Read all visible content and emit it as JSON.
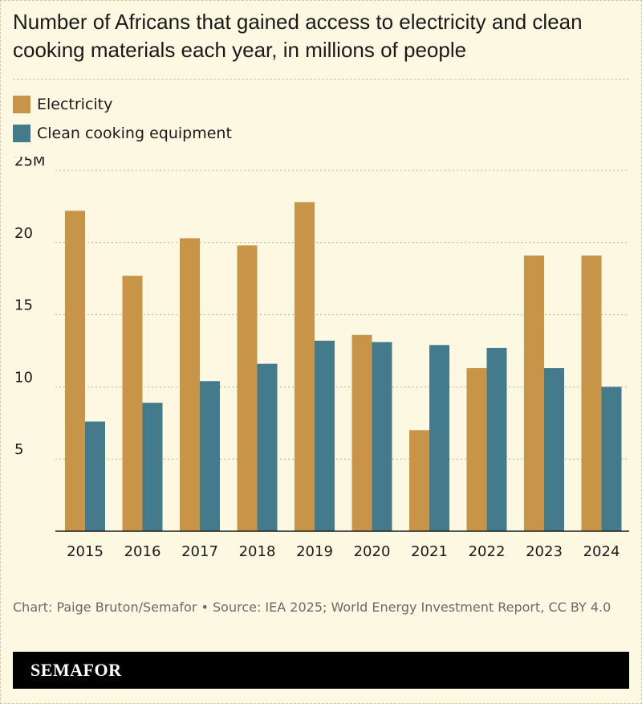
{
  "title": "Number of Africans that gained access to electricity and clean cooking materials each year, in millions of people",
  "legend": {
    "electricity": "Electricity",
    "cooking": "Clean cooking equipment"
  },
  "footer": {
    "credit": "Chart: Paige Bruton/Semafor • Source: IEA 2025; World Energy Investment Report, CC BY 4.0",
    "brand": "SEMAFOR"
  },
  "colors": {
    "electricity": "#c89548",
    "cooking": "#437a8c",
    "background": "#fdf8e1"
  },
  "chart_data": {
    "type": "bar",
    "categories": [
      "2015",
      "2016",
      "2017",
      "2018",
      "2019",
      "2020",
      "2021",
      "2022",
      "2023",
      "2024"
    ],
    "series": [
      {
        "name": "Electricity",
        "values": [
          22.2,
          17.7,
          20.3,
          19.8,
          22.8,
          13.6,
          7.0,
          11.3,
          19.1,
          19.1
        ]
      },
      {
        "name": "Clean cooking equipment",
        "values": [
          7.6,
          8.9,
          10.4,
          11.6,
          13.2,
          13.1,
          12.9,
          12.7,
          11.3,
          10.0
        ]
      }
    ],
    "yticks": [
      {
        "value": 25,
        "label": "25M"
      },
      {
        "value": 20,
        "label": "20"
      },
      {
        "value": 15,
        "label": "15"
      },
      {
        "value": 10,
        "label": "10"
      },
      {
        "value": 5,
        "label": "5"
      }
    ],
    "ylim": [
      0,
      25
    ],
    "grid": true,
    "legend_position": "top-left"
  }
}
